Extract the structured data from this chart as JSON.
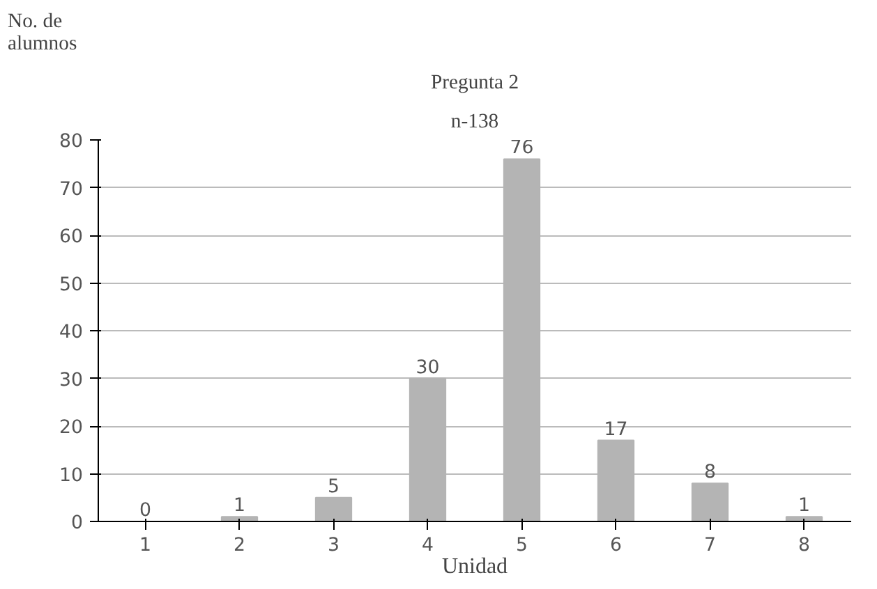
{
  "chart_data": {
    "type": "bar",
    "title": "Pregunta 2",
    "subtitle": "n-138",
    "ylabel": "No. de alumnos",
    "xlabel": "Unidad",
    "categories": [
      "1",
      "2",
      "3",
      "4",
      "5",
      "6",
      "7",
      "8"
    ],
    "values": [
      0,
      1,
      5,
      30,
      76,
      17,
      8,
      1
    ],
    "color": "#b4b4b4",
    "ylim": [
      0,
      80
    ],
    "yticks": [
      0,
      10,
      20,
      30,
      40,
      50,
      60,
      70,
      80
    ],
    "grid": "y",
    "data_labels": true
  }
}
